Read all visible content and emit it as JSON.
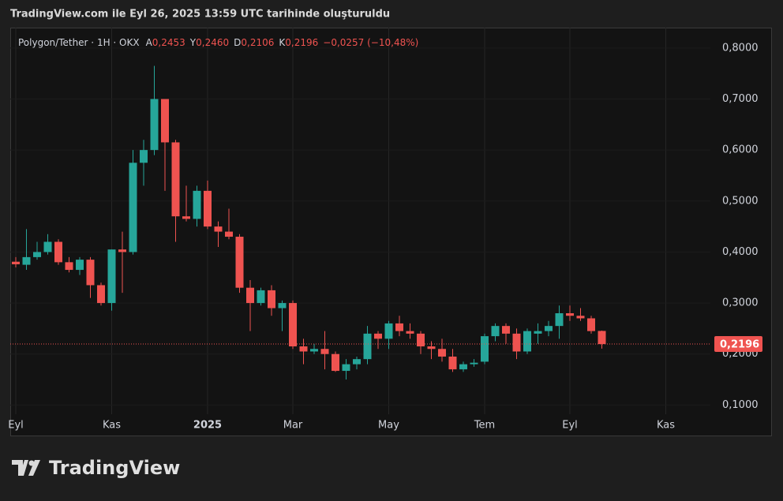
{
  "caption": "TradingView.com ile Eyl 26, 2025 13:59 UTC tarihinde oluşturuldu",
  "brand": "TradingView",
  "chart_data": {
    "type": "candlestick",
    "title": "Polygon/Tether · 1H · OKX",
    "ohlc_legend": [
      {
        "key": "A",
        "value": "0,2453"
      },
      {
        "key": "Y",
        "value": "0,2460"
      },
      {
        "key": "D",
        "value": "0,2106"
      },
      {
        "key": "K",
        "value": "0,2196"
      }
    ],
    "change": "−0,0257 (−10,48%)",
    "categories": [
      "Eyl",
      null,
      null,
      null,
      null,
      null,
      null,
      null,
      null,
      "Kas",
      null,
      null,
      null,
      null,
      null,
      null,
      null,
      null,
      "2025",
      null,
      null,
      null,
      null,
      null,
      null,
      null,
      "Mar",
      null,
      null,
      null,
      null,
      null,
      null,
      null,
      null,
      "May",
      null,
      null,
      null,
      null,
      null,
      null,
      null,
      null,
      "Tem",
      null,
      null,
      null,
      null,
      null,
      null,
      null,
      "Eyl",
      null,
      null,
      null,
      null,
      null,
      null,
      null,
      null,
      "Kas",
      null,
      null,
      null,
      null
    ],
    "open": [
      0.381,
      0.375,
      0.39,
      0.4,
      0.42,
      0.38,
      0.365,
      0.385,
      0.335,
      0.3,
      0.405,
      0.4,
      0.575,
      0.6,
      0.7,
      0.615,
      0.47,
      0.465,
      0.52,
      0.45,
      0.44,
      0.43,
      0.33,
      0.3,
      0.325,
      0.29,
      0.3,
      0.215,
      0.205,
      0.21,
      0.2,
      0.167,
      0.18,
      0.19,
      0.24,
      0.23,
      0.26,
      0.245,
      0.24,
      0.215,
      0.21,
      0.195,
      0.17,
      0.18,
      0.185,
      0.235,
      0.255,
      0.24,
      0.205,
      0.24,
      0.245,
      0.255,
      0.28,
      0.275,
      0.27,
      0.2453,
      null,
      null,
      null,
      null,
      null,
      null,
      null,
      null,
      null,
      null
    ],
    "high": [
      0.39,
      0.445,
      0.42,
      0.435,
      0.425,
      0.39,
      0.39,
      0.39,
      0.34,
      0.405,
      0.44,
      0.6,
      0.62,
      0.765,
      0.7,
      0.62,
      0.53,
      0.53,
      0.54,
      0.46,
      0.485,
      0.435,
      0.345,
      0.33,
      0.335,
      0.305,
      0.305,
      0.23,
      0.22,
      0.245,
      0.205,
      0.19,
      0.195,
      0.255,
      0.245,
      0.265,
      0.275,
      0.26,
      0.245,
      0.225,
      0.23,
      0.21,
      0.185,
      0.19,
      0.24,
      0.26,
      0.26,
      0.25,
      0.25,
      0.26,
      0.265,
      0.295,
      0.295,
      0.29,
      0.275,
      0.246,
      null,
      null,
      null,
      null,
      null,
      null,
      null,
      null,
      null,
      null
    ],
    "low": [
      0.37,
      0.365,
      0.385,
      0.395,
      0.375,
      0.36,
      0.355,
      0.31,
      0.295,
      0.285,
      0.32,
      0.395,
      0.53,
      0.59,
      0.52,
      0.42,
      0.46,
      0.45,
      0.445,
      0.41,
      0.425,
      0.32,
      0.245,
      0.295,
      0.275,
      0.245,
      0.21,
      0.18,
      0.2,
      0.17,
      0.165,
      0.15,
      0.17,
      0.18,
      0.21,
      0.21,
      0.235,
      0.23,
      0.2,
      0.19,
      0.185,
      0.165,
      0.165,
      0.175,
      0.18,
      0.225,
      0.22,
      0.19,
      0.2,
      0.22,
      0.235,
      0.23,
      0.265,
      0.265,
      0.24,
      0.2106,
      null,
      null,
      null,
      null,
      null,
      null,
      null,
      null,
      null,
      null
    ],
    "close": [
      0.376,
      0.39,
      0.4,
      0.42,
      0.38,
      0.365,
      0.385,
      0.335,
      0.3,
      0.405,
      0.4,
      0.575,
      0.6,
      0.7,
      0.615,
      0.47,
      0.465,
      0.52,
      0.45,
      0.44,
      0.43,
      0.33,
      0.3,
      0.325,
      0.29,
      0.3,
      0.215,
      0.205,
      0.21,
      0.2,
      0.167,
      0.18,
      0.19,
      0.24,
      0.23,
      0.26,
      0.245,
      0.24,
      0.215,
      0.21,
      0.195,
      0.17,
      0.18,
      0.183,
      0.235,
      0.255,
      0.24,
      0.205,
      0.245,
      0.245,
      0.255,
      0.28,
      0.275,
      0.27,
      0.245,
      0.2196,
      null,
      null,
      null,
      null,
      null,
      null,
      null,
      null,
      null,
      null
    ],
    "up_color": "#26a69a",
    "down_color": "#ef5350",
    "last_price": {
      "value": 0.2196,
      "label": "0,2196"
    },
    "ylim": [
      0.082,
      0.84
    ],
    "yticks": [
      {
        "value": 0.1,
        "label": "0,1000"
      },
      {
        "value": 0.2,
        "label": "0,2000"
      },
      {
        "value": 0.3,
        "label": "0,3000"
      },
      {
        "value": 0.4,
        "label": "0,4000"
      },
      {
        "value": 0.5,
        "label": "0,5000"
      },
      {
        "value": 0.6,
        "label": "0,6000"
      },
      {
        "value": 0.7,
        "label": "0,7000"
      },
      {
        "value": 0.8,
        "label": "0,8000"
      }
    ],
    "grid": true
  }
}
